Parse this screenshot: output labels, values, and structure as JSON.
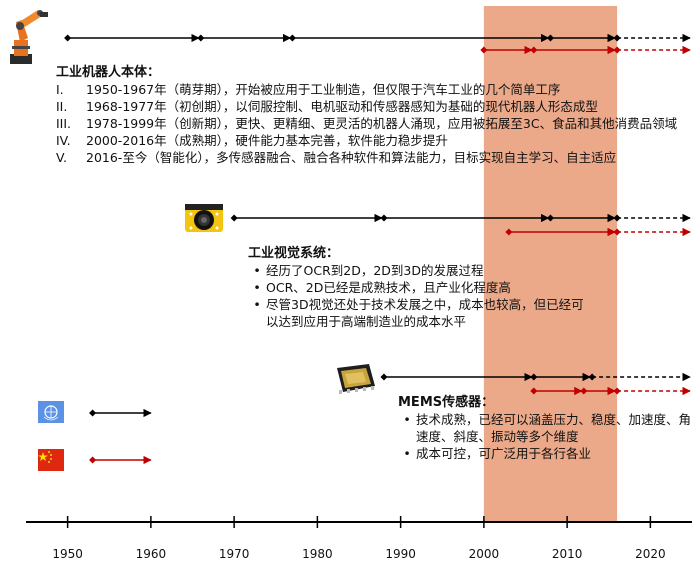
{
  "axis": {
    "min": 1945,
    "max": 2025,
    "ticks": [
      "1950",
      "1960",
      "1970",
      "1980",
      "1990",
      "2000",
      "2010",
      "2020"
    ],
    "highlight_range": [
      2000,
      2016
    ],
    "highlight_color": "#EBA98A",
    "axis_color": "#000000"
  },
  "colors": {
    "world": "#000000",
    "china": "#C00000"
  },
  "rows": [
    {
      "id": "robot",
      "icon": "industrial-robot-icon",
      "lines": [
        {
          "series": "world",
          "y": 38,
          "points": [
            1950,
            1966,
            1977,
            2008,
            2016
          ],
          "solid_end": 2016,
          "end": 2025
        },
        {
          "series": "china",
          "y": 50,
          "points": [
            2000,
            2006,
            2016
          ],
          "solid_end": 2016,
          "end": 2025
        }
      ]
    },
    {
      "id": "vision",
      "icon": "vision-camera-icon",
      "lines": [
        {
          "series": "world",
          "y": 218,
          "points": [
            1970,
            1988,
            2008,
            2016
          ],
          "solid_end": 2016,
          "end": 2025
        },
        {
          "series": "china",
          "y": 232,
          "points": [
            2003,
            2016
          ],
          "solid_end": 2016,
          "end": 2025
        }
      ]
    },
    {
      "id": "mems",
      "icon": "mems-chip-icon",
      "lines": [
        {
          "series": "world",
          "y": 377,
          "points": [
            1988,
            2006,
            2013
          ],
          "solid_end": 2013,
          "end": 2025
        },
        {
          "series": "china",
          "y": 391,
          "points": [
            2006,
            2012,
            2016
          ],
          "solid_end": 2016,
          "end": 2025
        }
      ]
    }
  ],
  "legend": {
    "world": {
      "icon": "un-flag-icon",
      "arrow_from": 1953,
      "arrow_to": 1960
    },
    "china": {
      "icon": "china-flag-icon",
      "arrow_from": 1953,
      "arrow_to": 1960
    }
  },
  "robot_text": {
    "title": "工业机器人本体：",
    "items": [
      {
        "num": "I.",
        "text": "1950-1967年（萌芽期），开始被应用于工业制造，但仅限于汽车工业的几个简单工序"
      },
      {
        "num": "II.",
        "text": "1968-1977年（初创期），以伺服控制、电机驱动和传感器感知为基础的现代机器人形态成型"
      },
      {
        "num": "III.",
        "text": "1978-1999年（创新期），更快、更精细、更灵活的机器人涌现，应用被拓展至3C、食品和其他消费品领域"
      },
      {
        "num": "IV.",
        "text": "2000-2016年（成熟期），硬件能力基本完善，软件能力稳步提升"
      },
      {
        "num": "V.",
        "text": "2016-至今（智能化），多传感器融合、融合各种软件和算法能力，目标实现自主学习、自主适应"
      }
    ]
  },
  "vision_text": {
    "title": "工业视觉系统：",
    "bullets": [
      "经历了OCR到2D，2D到3D的发展过程",
      "OCR、2D已经是成熟技术，且产业化程度高",
      "尽管3D视觉还处于技术发展之中，成本也较高，但已经可以达到应用于高端制造业的成本水平"
    ]
  },
  "mems_text": {
    "title": "MEMS传感器：",
    "bullets": [
      "技术成熟，已经可以涵盖压力、稳度、加速度、角速度、斜度、振动等多个维度",
      "成本可控，可广泛用于各行各业"
    ]
  }
}
